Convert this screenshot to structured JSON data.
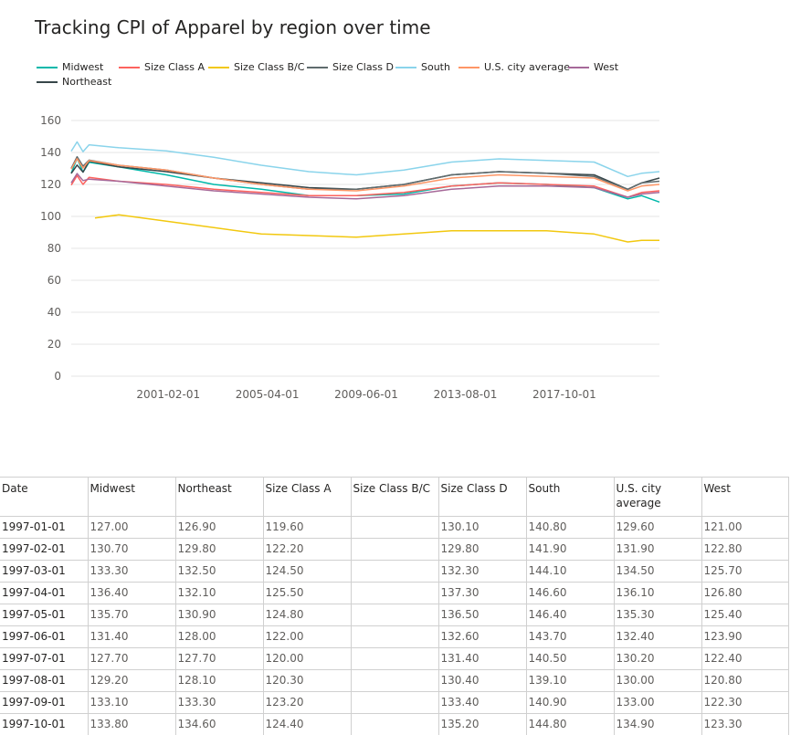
{
  "title": "Tracking CPI of Apparel by region over time",
  "legend": [
    {
      "name": "Midwest",
      "color": "#01B8AA"
    },
    {
      "name": "Size Class A",
      "color": "#FD625E"
    },
    {
      "name": "Size Class B/C",
      "color": "#F2C80F"
    },
    {
      "name": "Size Class D",
      "color": "#5F6B6D"
    },
    {
      "name": "South",
      "color": "#8AD4EB"
    },
    {
      "name": "U.S. city average",
      "color": "#FE9666"
    },
    {
      "name": "West",
      "color": "#A66999"
    },
    {
      "name": "Northeast",
      "color": "#374649"
    }
  ],
  "chart_data": {
    "type": "line",
    "title": "Tracking CPI of Apparel by region over time",
    "x_range": [
      "1997-01-01",
      "2021-10-01"
    ],
    "x_ticks": [
      "2001-02-01",
      "2005-04-01",
      "2009-06-01",
      "2013-08-01",
      "2017-10-01"
    ],
    "y_ticks": [
      "0",
      "20",
      "40",
      "60",
      "80",
      "100",
      "120",
      "140",
      "160"
    ],
    "ylim": [
      0,
      160
    ],
    "grid": true,
    "legend_position": "top-left",
    "series": [
      {
        "name": "Midwest",
        "color": "#01B8AA",
        "points": [
          [
            "1997-01-01",
            127.0
          ],
          [
            "1997-04-01",
            136.4
          ],
          [
            "1997-07-01",
            127.7
          ],
          [
            "1997-10-01",
            133.8
          ],
          [
            "1999-01-01",
            131
          ],
          [
            "2001-01-01",
            126
          ],
          [
            "2003-01-01",
            120
          ],
          [
            "2005-01-01",
            117
          ],
          [
            "2007-01-01",
            113
          ],
          [
            "2009-01-01",
            113
          ],
          [
            "2011-01-01",
            114
          ],
          [
            "2013-01-01",
            119
          ],
          [
            "2015-01-01",
            121
          ],
          [
            "2017-01-01",
            120
          ],
          [
            "2019-01-01",
            118
          ],
          [
            "2020-06-01",
            111
          ],
          [
            "2021-01-01",
            113
          ],
          [
            "2021-10-01",
            109
          ]
        ]
      },
      {
        "name": "Northeast",
        "color": "#374649",
        "points": [
          [
            "1997-01-01",
            126.9
          ],
          [
            "1997-04-01",
            132.1
          ],
          [
            "1997-07-01",
            127.7
          ],
          [
            "1997-10-01",
            134.6
          ],
          [
            "1999-01-01",
            131
          ],
          [
            "2001-01-01",
            128
          ],
          [
            "2003-01-01",
            124
          ],
          [
            "2005-01-01",
            121
          ],
          [
            "2007-01-01",
            118
          ],
          [
            "2009-01-01",
            117
          ],
          [
            "2011-01-01",
            120
          ],
          [
            "2013-01-01",
            126
          ],
          [
            "2015-01-01",
            128
          ],
          [
            "2017-01-01",
            127
          ],
          [
            "2019-01-01",
            126
          ],
          [
            "2020-06-01",
            117
          ],
          [
            "2021-01-01",
            121
          ],
          [
            "2021-10-01",
            124
          ]
        ]
      },
      {
        "name": "Size Class A",
        "color": "#FD625E",
        "points": [
          [
            "1997-01-01",
            119.6
          ],
          [
            "1997-04-01",
            125.5
          ],
          [
            "1997-07-01",
            120.0
          ],
          [
            "1997-10-01",
            124.4
          ],
          [
            "1999-01-01",
            122
          ],
          [
            "2001-01-01",
            120
          ],
          [
            "2003-01-01",
            117
          ],
          [
            "2005-01-01",
            115
          ],
          [
            "2007-01-01",
            113
          ],
          [
            "2009-01-01",
            113
          ],
          [
            "2011-01-01",
            115
          ],
          [
            "2013-01-01",
            119
          ],
          [
            "2015-01-01",
            121
          ],
          [
            "2017-01-01",
            120
          ],
          [
            "2019-01-01",
            119
          ],
          [
            "2020-06-01",
            112
          ],
          [
            "2021-01-01",
            115
          ],
          [
            "2021-10-01",
            116
          ]
        ]
      },
      {
        "name": "Size Class B/C",
        "color": "#F2C80F",
        "points": [
          [
            "1998-01-01",
            99
          ],
          [
            "1999-01-01",
            101
          ],
          [
            "2001-01-01",
            97
          ],
          [
            "2003-01-01",
            93
          ],
          [
            "2005-01-01",
            89
          ],
          [
            "2007-01-01",
            88
          ],
          [
            "2009-01-01",
            87
          ],
          [
            "2011-01-01",
            89
          ],
          [
            "2013-01-01",
            91
          ],
          [
            "2015-01-01",
            91
          ],
          [
            "2017-01-01",
            91
          ],
          [
            "2019-01-01",
            89
          ],
          [
            "2020-06-01",
            84
          ],
          [
            "2021-01-01",
            85
          ],
          [
            "2021-10-01",
            85
          ]
        ]
      },
      {
        "name": "Size Class D",
        "color": "#5F6B6D",
        "points": [
          [
            "1997-01-01",
            130.1
          ],
          [
            "1997-04-01",
            137.3
          ],
          [
            "1997-07-01",
            131.4
          ],
          [
            "1997-10-01",
            135.2
          ],
          [
            "1999-01-01",
            132
          ],
          [
            "2001-01-01",
            129
          ],
          [
            "2003-01-01",
            124
          ],
          [
            "2005-01-01",
            120
          ],
          [
            "2007-01-01",
            117
          ],
          [
            "2009-01-01",
            117
          ],
          [
            "2011-01-01",
            120
          ],
          [
            "2013-01-01",
            126
          ],
          [
            "2015-01-01",
            128
          ],
          [
            "2017-01-01",
            127
          ],
          [
            "2019-01-01",
            125
          ],
          [
            "2020-06-01",
            117
          ],
          [
            "2021-01-01",
            121
          ],
          [
            "2021-10-01",
            122
          ]
        ]
      },
      {
        "name": "South",
        "color": "#8AD4EB",
        "points": [
          [
            "1997-01-01",
            140.8
          ],
          [
            "1997-04-01",
            146.6
          ],
          [
            "1997-07-01",
            140.5
          ],
          [
            "1997-10-01",
            144.8
          ],
          [
            "1999-01-01",
            143
          ],
          [
            "2001-01-01",
            141
          ],
          [
            "2003-01-01",
            137
          ],
          [
            "2005-01-01",
            132
          ],
          [
            "2007-01-01",
            128
          ],
          [
            "2009-01-01",
            126
          ],
          [
            "2011-01-01",
            129
          ],
          [
            "2013-01-01",
            134
          ],
          [
            "2015-01-01",
            136
          ],
          [
            "2017-01-01",
            135
          ],
          [
            "2019-01-01",
            134
          ],
          [
            "2020-06-01",
            125
          ],
          [
            "2021-01-01",
            127
          ],
          [
            "2021-10-01",
            128
          ]
        ]
      },
      {
        "name": "U.S. city average",
        "color": "#FE9666",
        "points": [
          [
            "1997-01-01",
            129.6
          ],
          [
            "1997-04-01",
            136.1
          ],
          [
            "1997-07-01",
            130.2
          ],
          [
            "1997-10-01",
            134.9
          ],
          [
            "1999-01-01",
            132
          ],
          [
            "2001-01-01",
            129
          ],
          [
            "2003-01-01",
            124
          ],
          [
            "2005-01-01",
            120
          ],
          [
            "2007-01-01",
            117
          ],
          [
            "2009-01-01",
            116
          ],
          [
            "2011-01-01",
            119
          ],
          [
            "2013-01-01",
            124
          ],
          [
            "2015-01-01",
            126
          ],
          [
            "2017-01-01",
            125
          ],
          [
            "2019-01-01",
            124
          ],
          [
            "2020-06-01",
            116
          ],
          [
            "2021-01-01",
            119
          ],
          [
            "2021-10-01",
            120
          ]
        ]
      },
      {
        "name": "West",
        "color": "#A66999",
        "points": [
          [
            "1997-01-01",
            121.0
          ],
          [
            "1997-04-01",
            126.8
          ],
          [
            "1997-07-01",
            122.4
          ],
          [
            "1997-10-01",
            123.3
          ],
          [
            "1999-01-01",
            122
          ],
          [
            "2001-01-01",
            119
          ],
          [
            "2003-01-01",
            116
          ],
          [
            "2005-01-01",
            114
          ],
          [
            "2007-01-01",
            112
          ],
          [
            "2009-01-01",
            111
          ],
          [
            "2011-01-01",
            113
          ],
          [
            "2013-01-01",
            117
          ],
          [
            "2015-01-01",
            119
          ],
          [
            "2017-01-01",
            119
          ],
          [
            "2019-01-01",
            118
          ],
          [
            "2020-06-01",
            112
          ],
          [
            "2021-01-01",
            114
          ],
          [
            "2021-10-01",
            115
          ]
        ]
      }
    ]
  },
  "table": {
    "headers": [
      "Date",
      "Midwest",
      "Northeast",
      "Size Class A",
      "Size Class B/C",
      "Size Class D",
      "South",
      "U.S. city average",
      "West"
    ],
    "rows": [
      [
        "1997-01-01",
        "127.00",
        "126.90",
        "119.60",
        "",
        "130.10",
        "140.80",
        "129.60",
        "121.00"
      ],
      [
        "1997-02-01",
        "130.70",
        "129.80",
        "122.20",
        "",
        "129.80",
        "141.90",
        "131.90",
        "122.80"
      ],
      [
        "1997-03-01",
        "133.30",
        "132.50",
        "124.50",
        "",
        "132.30",
        "144.10",
        "134.50",
        "125.70"
      ],
      [
        "1997-04-01",
        "136.40",
        "132.10",
        "125.50",
        "",
        "137.30",
        "146.60",
        "136.10",
        "126.80"
      ],
      [
        "1997-05-01",
        "135.70",
        "130.90",
        "124.80",
        "",
        "136.50",
        "146.40",
        "135.30",
        "125.40"
      ],
      [
        "1997-06-01",
        "131.40",
        "128.00",
        "122.00",
        "",
        "132.60",
        "143.70",
        "132.40",
        "123.90"
      ],
      [
        "1997-07-01",
        "127.70",
        "127.70",
        "120.00",
        "",
        "131.40",
        "140.50",
        "130.20",
        "122.40"
      ],
      [
        "1997-08-01",
        "129.20",
        "128.10",
        "120.30",
        "",
        "130.40",
        "139.10",
        "130.00",
        "120.80"
      ],
      [
        "1997-09-01",
        "133.10",
        "133.30",
        "123.20",
        "",
        "133.40",
        "140.90",
        "133.00",
        "122.30"
      ],
      [
        "1997-10-01",
        "133.80",
        "134.60",
        "124.40",
        "",
        "135.20",
        "144.80",
        "134.90",
        "123.30"
      ]
    ]
  }
}
